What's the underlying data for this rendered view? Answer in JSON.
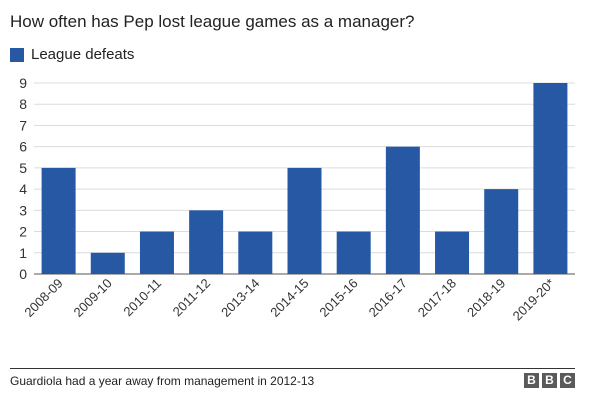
{
  "brand_color": "#2658a4",
  "grid_color": "#dcdcdc",
  "footnote": "Guardiola had a year away from management in 2012-13",
  "logo": {
    "letters": [
      "B",
      "B",
      "C"
    ]
  },
  "chart_data": {
    "type": "bar",
    "title": "How often has Pep lost league games as a manager?",
    "xlabel": "",
    "ylabel": "",
    "legend": "top-left",
    "grid": true,
    "ylim": [
      0,
      9
    ],
    "yticks": [
      0,
      1,
      2,
      3,
      4,
      5,
      6,
      7,
      8,
      9
    ],
    "categories": [
      "2008-09",
      "2009-10",
      "2010-11",
      "2011-12",
      "2013-14",
      "2014-15",
      "2015-16",
      "2016-17",
      "2017-18",
      "2018-19",
      "2019-20*"
    ],
    "series": [
      {
        "name": "League defeats",
        "values": [
          5,
          1,
          2,
          3,
          2,
          5,
          2,
          6,
          2,
          4,
          9
        ]
      }
    ]
  }
}
